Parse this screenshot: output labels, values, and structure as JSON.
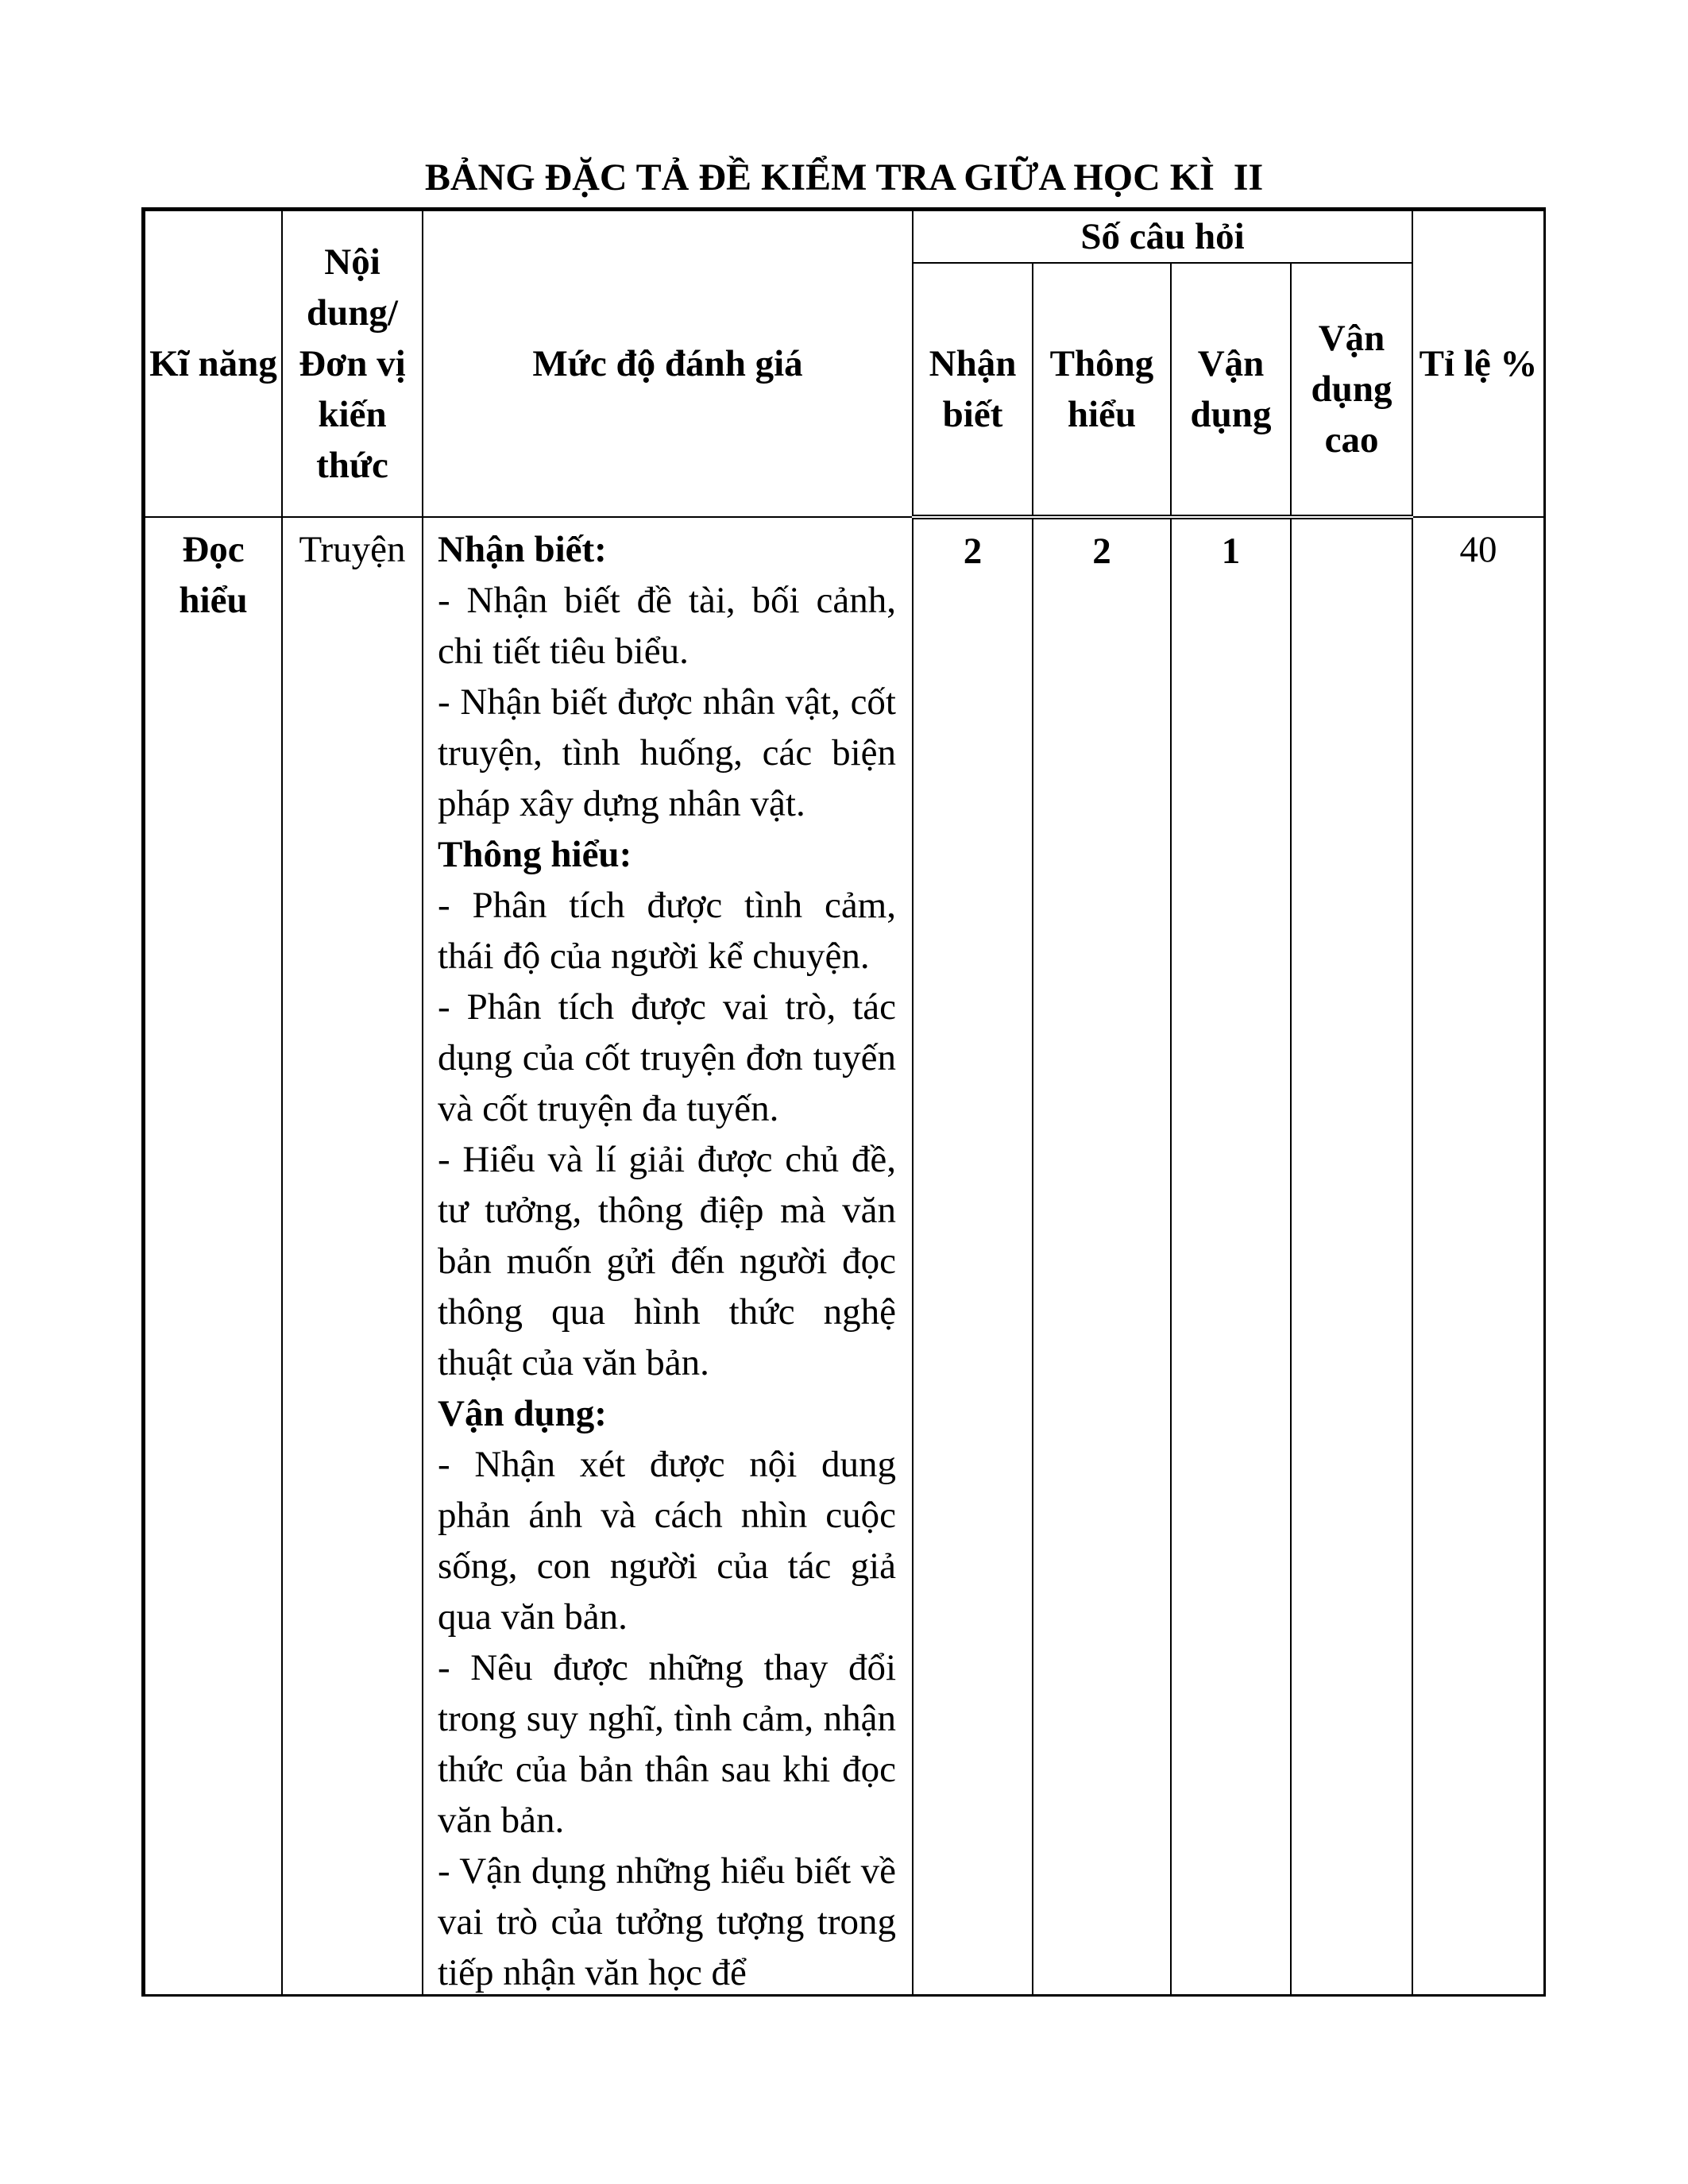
{
  "title": "BẢNG ĐẶC TẢ ĐỀ KIỂM TRA GIỮA HỌC KÌ  II",
  "headers": {
    "ki_nang": "Kĩ năng",
    "noi_dung": "Nội dung/ Đơn vị kiến thức",
    "muc_do": "Mức độ đánh giá",
    "so_cau_hoi": "Số câu hỏi",
    "nhan_biet": "Nhận biết",
    "thong_hieu": "Thông hiểu",
    "van_dung": "Vận dụng",
    "van_dung_cao": "Vận dụng cao",
    "ti_le": "Tỉ lệ %"
  },
  "rows": [
    {
      "ki_nang": "Đọc hiểu",
      "noi_dung": "Truyện",
      "muc_do": [
        {
          "type": "head",
          "text": "Nhận biết:"
        },
        {
          "type": "item",
          "text": "- Nhận biết đề tài, bối cảnh, chi tiết tiêu biểu."
        },
        {
          "type": "item",
          "text": "- Nhận biết được nhân vật, cốt truyện, tình huống, các biện pháp xây dựng nhân vật."
        },
        {
          "type": "head",
          "text": "Thông hiểu:"
        },
        {
          "type": "item",
          "text": "- Phân tích được tình cảm, thái độ của người kể chuyện."
        },
        {
          "type": "item",
          "text": "- Phân tích được vai trò, tác dụng của cốt truyện đơn tuyến và cốt truyện đa tuyến."
        },
        {
          "type": "item",
          "text": "- Hiểu và lí giải được chủ đề, tư tưởng, thông điệp mà văn bản muốn gửi đến người đọc thông qua hình thức nghệ thuật của văn bản."
        },
        {
          "type": "head",
          "text": "Vận dụng:"
        },
        {
          "type": "item",
          "text": "- Nhận xét được nội dung phản ánh và cách nhìn cuộc sống, con người của tác giả qua văn bản."
        },
        {
          "type": "item",
          "text": "- Nêu được những thay đổi trong suy nghĩ, tình cảm, nhận thức của bản thân sau khi đọc văn bản."
        },
        {
          "type": "item",
          "text": "- Vận dụng những hiểu biết về vai trò của tưởng tượng trong tiếp nhận văn học để"
        }
      ],
      "nhan_biet": "2",
      "thong_hieu": "2",
      "van_dung": "1",
      "van_dung_cao": "",
      "ti_le": "40"
    }
  ]
}
